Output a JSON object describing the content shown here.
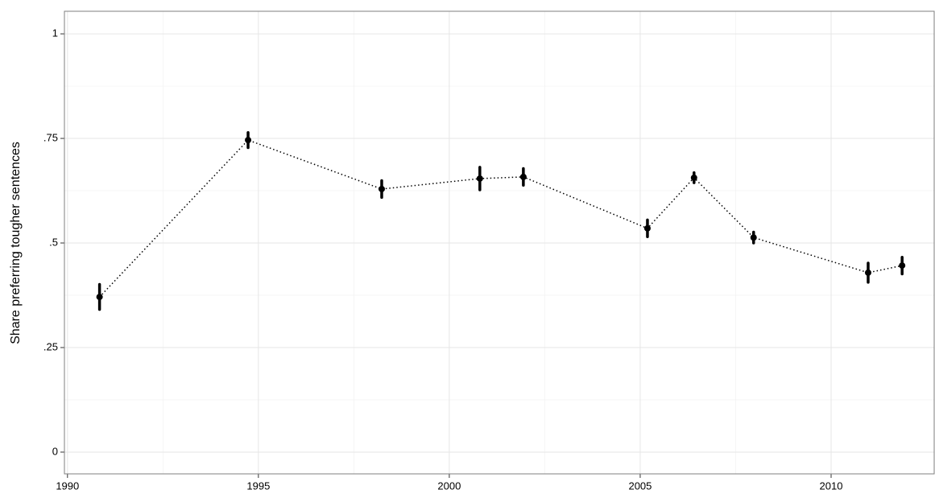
{
  "chart_data": {
    "type": "line",
    "y_label": "Share preferring tougher sentences",
    "x": [
      1990.84,
      1994.73,
      1998.23,
      2000.8,
      2001.94,
      2005.19,
      2006.41,
      2007.97,
      2010.97,
      2011.86
    ],
    "series": [
      {
        "color": "#000000",
        "values": [
          0.371,
          0.746,
          0.629,
          0.654,
          0.658,
          0.535,
          0.656,
          0.513,
          0.429,
          0.446
        ],
        "errors": [
          0.03,
          0.018,
          0.02,
          0.027,
          0.02,
          0.02,
          0.012,
          0.013,
          0.023,
          0.02
        ]
      }
    ],
    "xlim": [
      1989.92,
      2012.7
    ],
    "xticks": [
      1990,
      1995,
      2000,
      2005,
      2010
    ],
    "ylim": [
      -0.052,
      1.054
    ],
    "yticks": [
      0,
      {
        "value": 0.25,
        "label": ".25"
      },
      {
        "value": 0.5,
        "label": ".5"
      },
      {
        "value": 0.75,
        "label": ".75"
      },
      1
    ],
    "grid": true,
    "minor_grid": true
  }
}
